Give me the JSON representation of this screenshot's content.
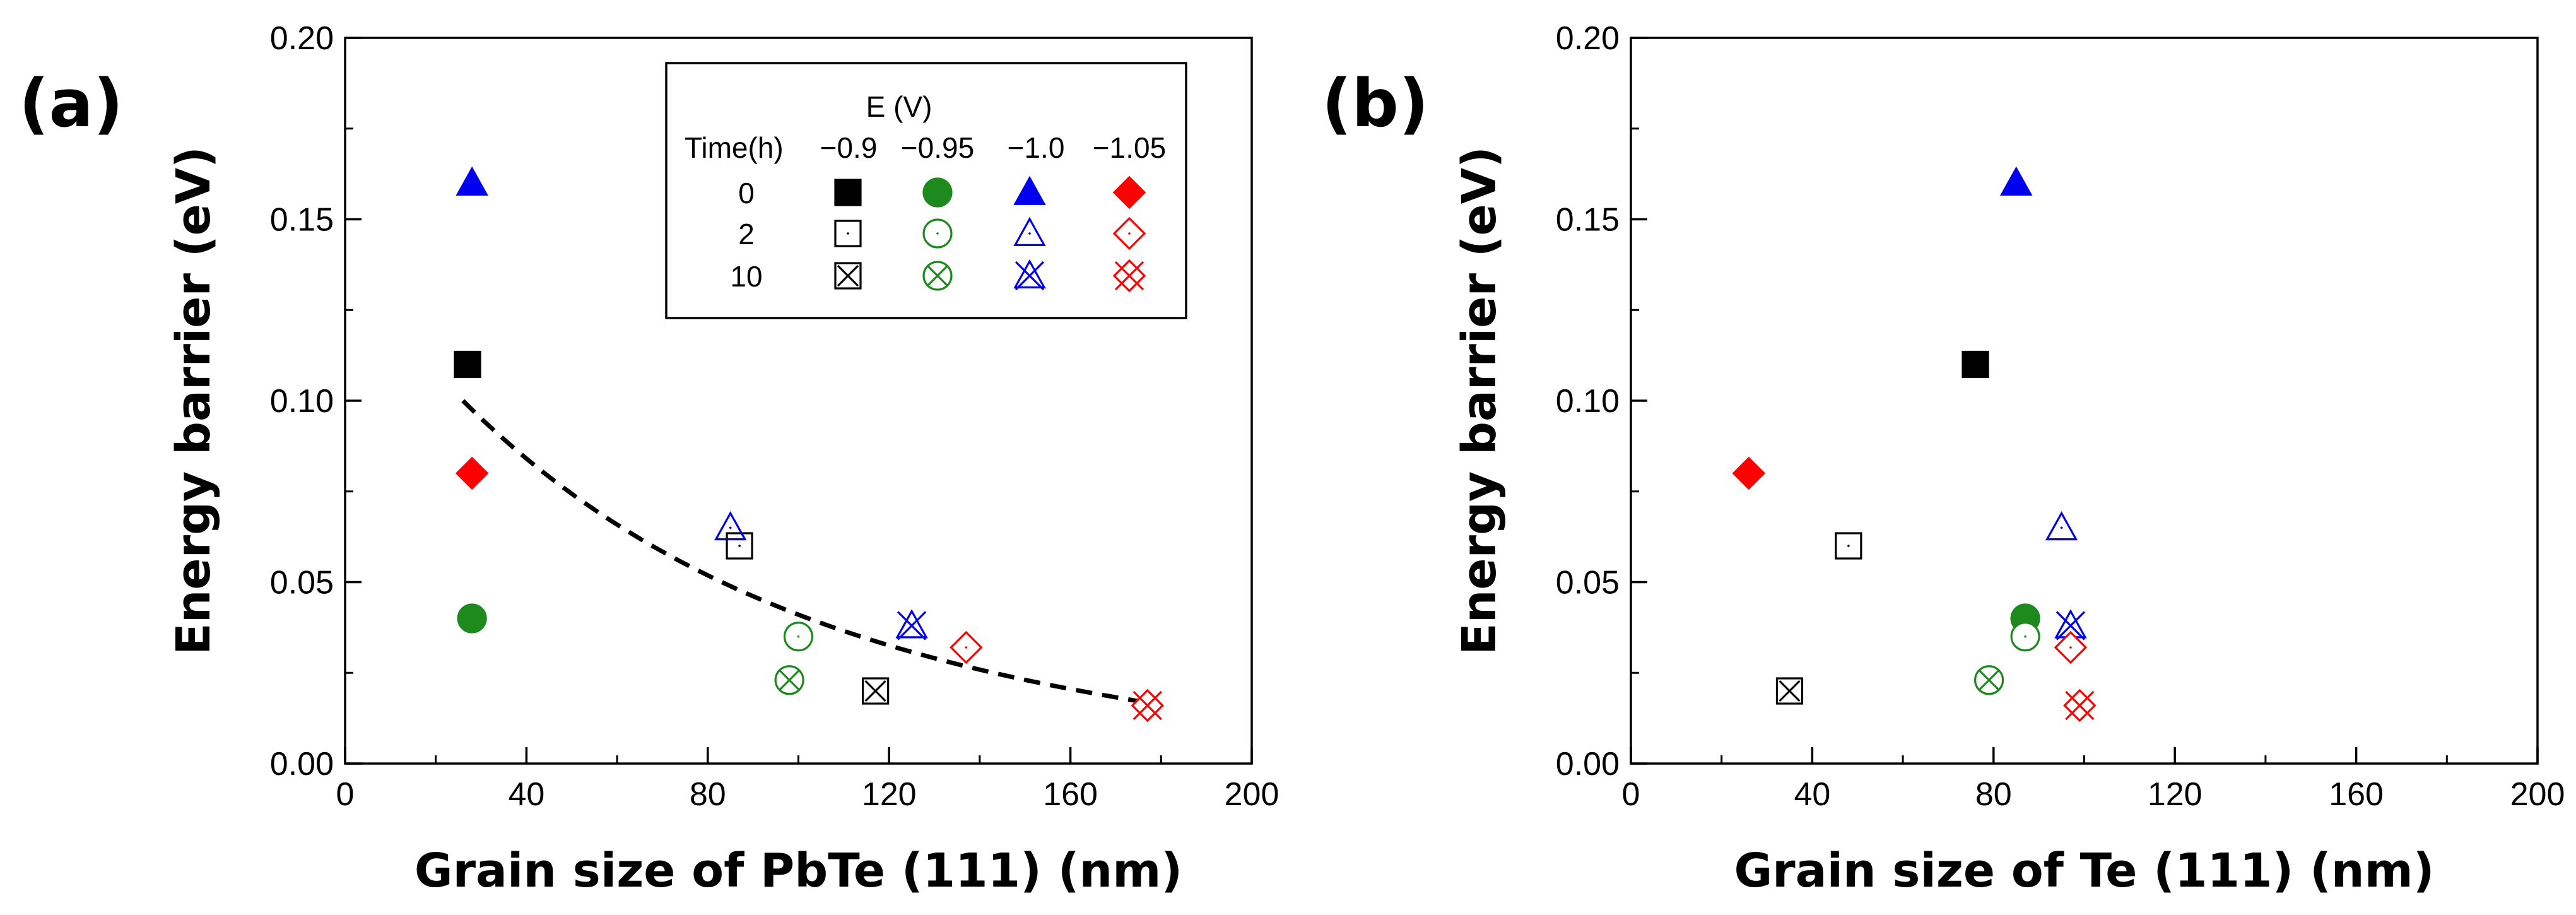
{
  "chart_data": [
    {
      "type": "scatter",
      "panel_label": "(a)",
      "title": "",
      "xlabel": "Grain size of PbTe (111) (nm)",
      "ylabel": "Energy barrier (eV)",
      "xlim": [
        0,
        200
      ],
      "ylim": [
        0,
        0.2
      ],
      "xticks": [
        0,
        40,
        80,
        120,
        160,
        200
      ],
      "yticks": [
        0.0,
        0.05,
        0.1,
        0.15,
        0.2
      ],
      "xtick_labels": [
        "0",
        "40",
        "80",
        "120",
        "160",
        "200"
      ],
      "ytick_labels": [
        "0.00",
        "0.05",
        "0.10",
        "0.15",
        "0.20"
      ],
      "grid": false,
      "legend": {
        "placement": "top-right",
        "header": "E (V)",
        "row_header": "Time(h)",
        "voltages": [
          "−0.9",
          "−0.95",
          "−1.0",
          "−1.05"
        ],
        "times": [
          "0",
          "2",
          "10"
        ]
      },
      "fit_curve": {
        "style": "dashed",
        "x_range": [
          26,
          176
        ],
        "y_start": 0.1,
        "y_end": 0.017,
        "decay_nm": 70
      },
      "series": [
        {
          "voltage": "−0.9",
          "time": "0",
          "x": 27,
          "y": 0.11
        },
        {
          "voltage": "−0.9",
          "time": "2",
          "x": 87,
          "y": 0.06
        },
        {
          "voltage": "−0.9",
          "time": "10",
          "x": 117,
          "y": 0.02
        },
        {
          "voltage": "−0.95",
          "time": "0",
          "x": 28,
          "y": 0.04
        },
        {
          "voltage": "−0.95",
          "time": "2",
          "x": 100,
          "y": 0.035
        },
        {
          "voltage": "−0.95",
          "time": "10",
          "x": 98,
          "y": 0.023
        },
        {
          "voltage": "−1.0",
          "time": "0",
          "x": 28,
          "y": 0.16
        },
        {
          "voltage": "−1.0",
          "time": "2",
          "x": 85,
          "y": 0.065
        },
        {
          "voltage": "−1.0",
          "time": "10",
          "x": 125,
          "y": 0.038
        },
        {
          "voltage": "−1.05",
          "time": "0",
          "x": 28,
          "y": 0.08
        },
        {
          "voltage": "−1.05",
          "time": "2",
          "x": 137,
          "y": 0.032
        },
        {
          "voltage": "−1.05",
          "time": "10",
          "x": 177,
          "y": 0.016
        }
      ]
    },
    {
      "type": "scatter",
      "panel_label": "(b)",
      "title": "",
      "xlabel": "Grain size of Te (111) (nm)",
      "ylabel": "Energy barrier (eV)",
      "xlim": [
        0,
        200
      ],
      "ylim": [
        0,
        0.2
      ],
      "xticks": [
        0,
        40,
        80,
        120,
        160,
        200
      ],
      "yticks": [
        0.0,
        0.05,
        0.1,
        0.15,
        0.2
      ],
      "xtick_labels": [
        "0",
        "40",
        "80",
        "120",
        "160",
        "200"
      ],
      "ytick_labels": [
        "0.00",
        "0.05",
        "0.10",
        "0.15",
        "0.20"
      ],
      "grid": false,
      "series": [
        {
          "voltage": "−0.9",
          "time": "0",
          "x": 76,
          "y": 0.11
        },
        {
          "voltage": "−0.9",
          "time": "2",
          "x": 48,
          "y": 0.06
        },
        {
          "voltage": "−0.9",
          "time": "10",
          "x": 35,
          "y": 0.02
        },
        {
          "voltage": "−0.95",
          "time": "0",
          "x": 87,
          "y": 0.04
        },
        {
          "voltage": "−0.95",
          "time": "2",
          "x": 87,
          "y": 0.035
        },
        {
          "voltage": "−0.95",
          "time": "10",
          "x": 79,
          "y": 0.023
        },
        {
          "voltage": "−1.0",
          "time": "0",
          "x": 85,
          "y": 0.16
        },
        {
          "voltage": "−1.0",
          "time": "2",
          "x": 95,
          "y": 0.065
        },
        {
          "voltage": "−1.0",
          "time": "10",
          "x": 97,
          "y": 0.038
        },
        {
          "voltage": "−1.05",
          "time": "0",
          "x": 26,
          "y": 0.08
        },
        {
          "voltage": "−1.05",
          "time": "2",
          "x": 97,
          "y": 0.032
        },
        {
          "voltage": "−1.05",
          "time": "10",
          "x": 99,
          "y": 0.016
        }
      ]
    }
  ],
  "colors": {
    "−0.9": "#000000",
    "−0.95": "#1e8a1e",
    "−1.0": "#0000ee",
    "−1.05": "#ff0000",
    "axis": "#000000"
  }
}
